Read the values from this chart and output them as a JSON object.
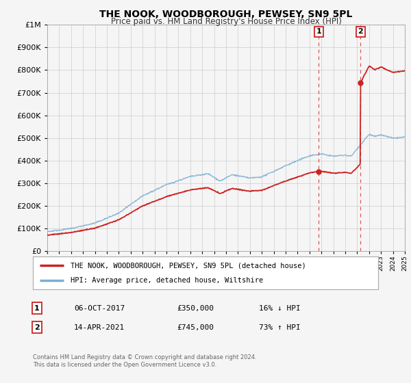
{
  "title": "THE NOOK, WOODBOROUGH, PEWSEY, SN9 5PL",
  "subtitle": "Price paid vs. HM Land Registry's House Price Index (HPI)",
  "legend_line1": "THE NOOK, WOODBOROUGH, PEWSEY, SN9 5PL (detached house)",
  "legend_line2": "HPI: Average price, detached house, Wiltshire",
  "sale1_label": "1",
  "sale1_date": "06-OCT-2017",
  "sale1_price": "£350,000",
  "sale1_hpi": "16% ↓ HPI",
  "sale1_year": 2017.78,
  "sale1_value": 350000,
  "sale2_label": "2",
  "sale2_date": "14-APR-2021",
  "sale2_price": "£745,000",
  "sale2_hpi": "73% ↑ HPI",
  "sale2_year": 2021.29,
  "sale2_value": 745000,
  "footer1": "Contains HM Land Registry data © Crown copyright and database right 2024.",
  "footer2": "This data is licensed under the Open Government Licence v3.0.",
  "hpi_color": "#7bafd4",
  "price_color": "#cc2222",
  "sale_dot_color": "#cc2222",
  "vline_color": "#cc2222",
  "background_color": "#f5f5f5",
  "plot_bg_color": "#f5f5f5",
  "grid_color": "#cccccc",
  "ylim_max": 1000000,
  "xmin": 1995,
  "xmax": 2025
}
